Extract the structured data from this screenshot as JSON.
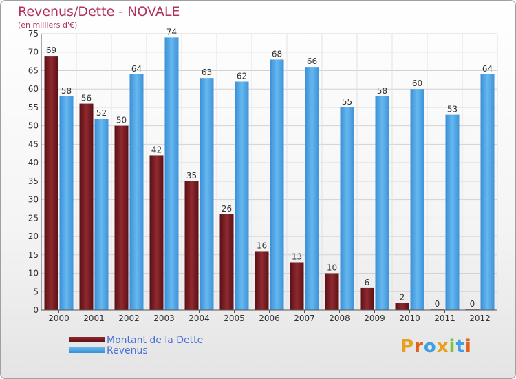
{
  "chart_data": {
    "type": "bar",
    "title": "Revenus/Dette - NOVALE",
    "subtitle": "(en milliers d'€)",
    "categories": [
      "2000",
      "2001",
      "2002",
      "2003",
      "2004",
      "2005",
      "2006",
      "2007",
      "2008",
      "2009",
      "2010",
      "2011",
      "2012"
    ],
    "series": [
      {
        "name": "Montant de la Dette",
        "color": "#7a1c22",
        "values": [
          69,
          56,
          50,
          42,
          35,
          26,
          16,
          13,
          10,
          6,
          2,
          0,
          0
        ]
      },
      {
        "name": "Revenus",
        "color": "#4aa3e4",
        "values": [
          58,
          52,
          64,
          74,
          63,
          62,
          68,
          66,
          55,
          58,
          60,
          53,
          64
        ]
      }
    ],
    "ylim": [
      0,
      75
    ],
    "yticks": [
      0,
      5,
      10,
      15,
      20,
      25,
      30,
      35,
      40,
      45,
      50,
      55,
      60,
      65,
      70,
      75
    ],
    "grid": true,
    "legend": "bottom-left"
  },
  "logo": {
    "letters": [
      "P",
      "r",
      "o",
      "x",
      "i",
      "t",
      "i"
    ],
    "colors": [
      "#e8a020",
      "#e06020",
      "#40a0e0",
      "#e8a020",
      "#80c040",
      "#40a0e0",
      "#e06020"
    ]
  }
}
